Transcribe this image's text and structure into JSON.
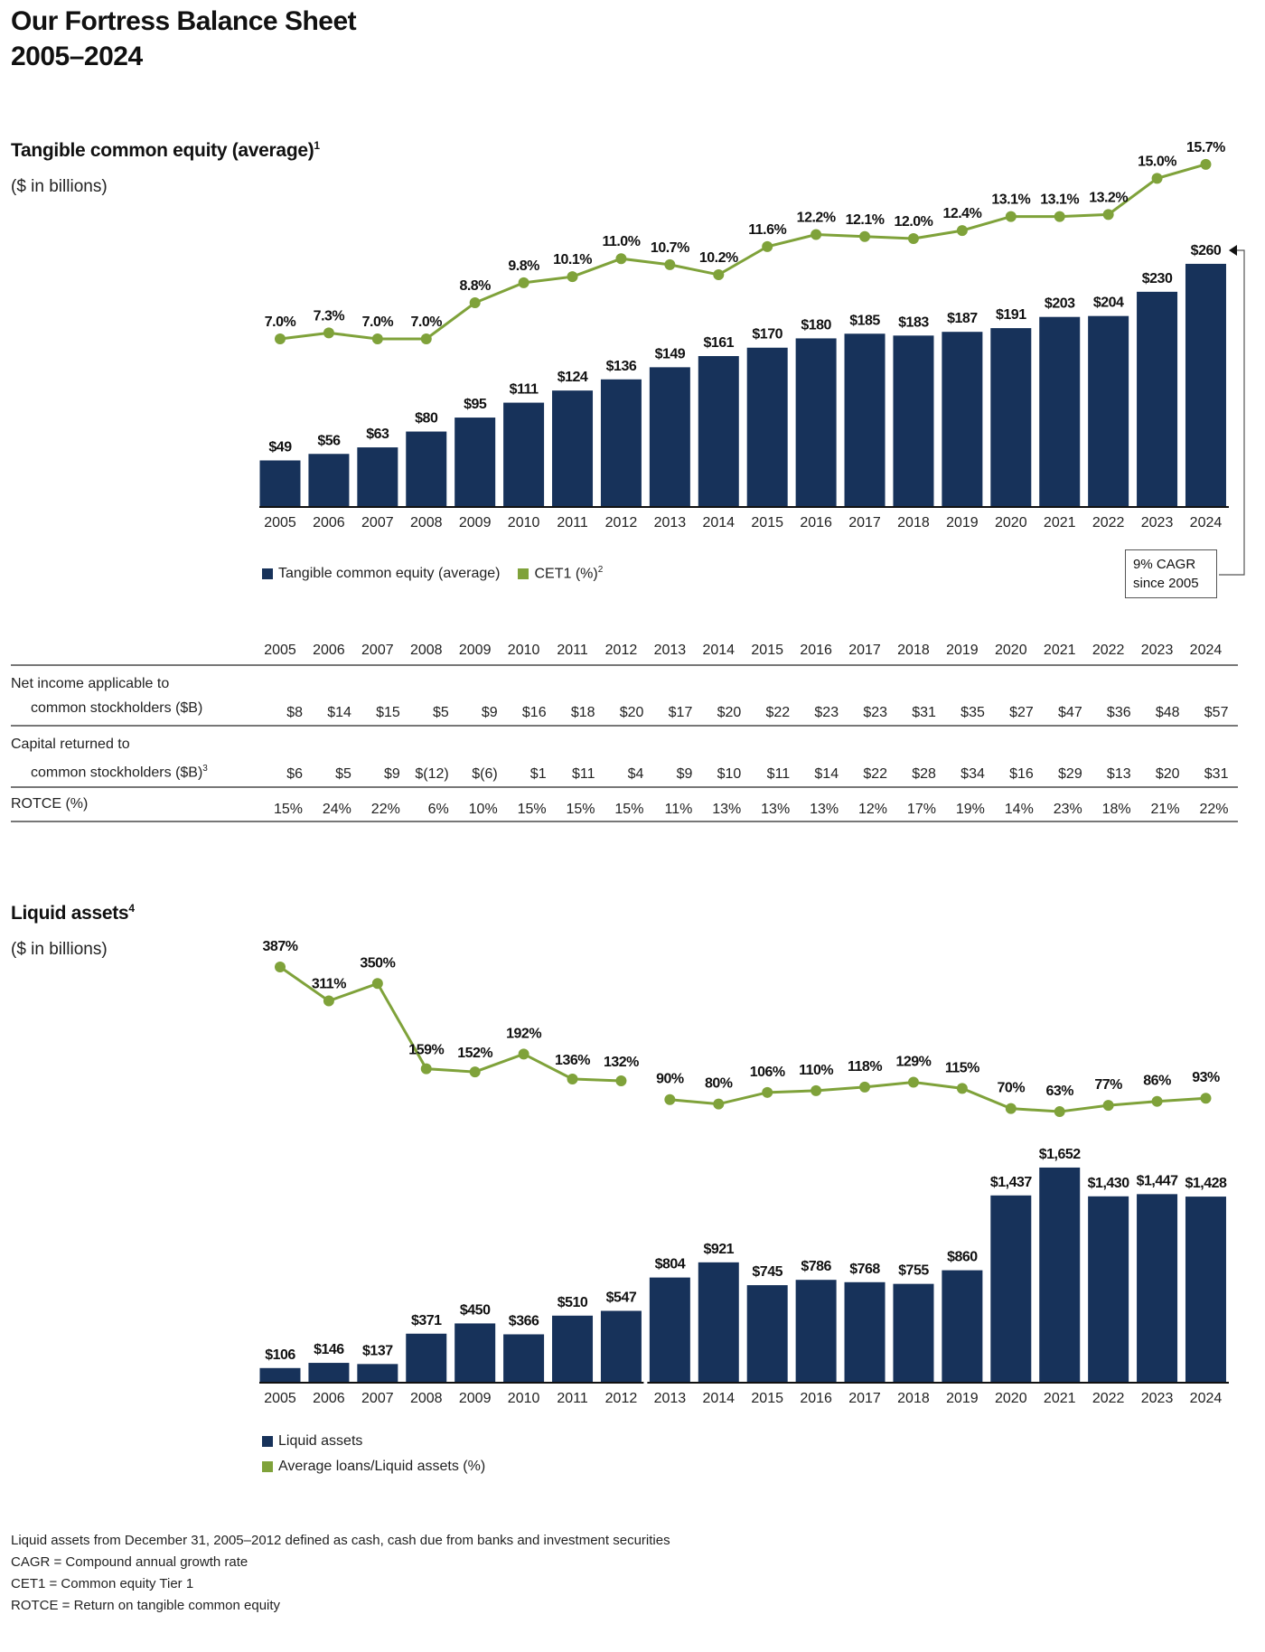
{
  "title_line1": "Our Fortress Balance Sheet",
  "title_line2": "2005–2024",
  "colors": {
    "bar": "#17325a",
    "line": "#7fa23a"
  },
  "years": [
    "2005",
    "2006",
    "2007",
    "2008",
    "2009",
    "2010",
    "2011",
    "2012",
    "2013",
    "2014",
    "2015",
    "2016",
    "2017",
    "2018",
    "2019",
    "2020",
    "2021",
    "2022",
    "2023",
    "2024"
  ],
  "chart_data": [
    {
      "type": "bar+line",
      "title": "Tangible common equity (average)",
      "title_footnote": "1",
      "subtitle": "($ in billions)",
      "categories": [
        "2005",
        "2006",
        "2007",
        "2008",
        "2009",
        "2010",
        "2011",
        "2012",
        "2013",
        "2014",
        "2015",
        "2016",
        "2017",
        "2018",
        "2019",
        "2020",
        "2021",
        "2022",
        "2023",
        "2024"
      ],
      "series": [
        {
          "name": "Tangible common equity (average)",
          "kind": "bar",
          "color": "#17325a",
          "values": [
            49,
            56,
            63,
            80,
            95,
            111,
            124,
            136,
            149,
            161,
            170,
            180,
            185,
            183,
            187,
            191,
            203,
            204,
            230,
            260
          ],
          "labels": [
            "$49",
            "$56",
            "$63",
            "$80",
            "$95",
            "$111",
            "$124",
            "$136",
            "$149",
            "$161",
            "$170",
            "$180",
            "$185",
            "$183",
            "$187",
            "$191",
            "$203",
            "$204",
            "$230",
            "$260"
          ]
        },
        {
          "name": "CET1 (%)",
          "name_footnote": "2",
          "kind": "line",
          "color": "#7fa23a",
          "values": [
            7.0,
            7.3,
            7.0,
            7.0,
            8.8,
            9.8,
            10.1,
            11.0,
            10.7,
            10.2,
            11.6,
            12.2,
            12.1,
            12.0,
            12.4,
            13.1,
            13.1,
            13.2,
            15.0,
            15.7
          ],
          "labels": [
            "7.0%",
            "7.3%",
            "7.0%",
            "7.0%",
            "8.8%",
            "9.8%",
            "10.1%",
            "11.0%",
            "10.7%",
            "10.2%",
            "11.6%",
            "12.2%",
            "12.1%",
            "12.0%",
            "12.4%",
            "13.1%",
            "13.1%",
            "13.2%",
            "15.0%",
            "15.7%"
          ]
        }
      ],
      "annotation": {
        "line1": "9% CAGR",
        "line2": "since 2005"
      },
      "legend_position": "bottom-left",
      "grid": false
    },
    {
      "type": "bar+line",
      "title": "Liquid assets",
      "title_footnote": "4",
      "subtitle": "($ in billions)",
      "categories": [
        "2005",
        "2006",
        "2007",
        "2008",
        "2009",
        "2010",
        "2011",
        "2012",
        "2013",
        "2014",
        "2015",
        "2016",
        "2017",
        "2018",
        "2019",
        "2020",
        "2021",
        "2022",
        "2023",
        "2024"
      ],
      "series": [
        {
          "name": "Liquid assets",
          "kind": "bar",
          "color": "#17325a",
          "values": [
            106,
            146,
            137,
            371,
            450,
            366,
            510,
            547,
            804,
            921,
            745,
            786,
            768,
            755,
            860,
            1437,
            1652,
            1430,
            1447,
            1428
          ],
          "labels": [
            "$106",
            "$146",
            "$137",
            "$371",
            "$450",
            "$366",
            "$510",
            "$547",
            "$804",
            "$921",
            "$745",
            "$786",
            "$768",
            "$755",
            "$860",
            "$1,437",
            "$1,652",
            "$1,430",
            "$1,447",
            "$1,428"
          ]
        },
        {
          "name": "Average loans/Liquid assets (%)",
          "kind": "line",
          "color": "#7fa23a",
          "values": [
            387,
            311,
            350,
            159,
            152,
            192,
            136,
            132,
            90,
            80,
            106,
            110,
            118,
            129,
            115,
            70,
            63,
            77,
            86,
            93
          ],
          "labels": [
            "387%",
            "311%",
            "350%",
            "159%",
            "152%",
            "192%",
            "136%",
            "132%",
            "90%",
            "80%",
            "106%",
            "110%",
            "118%",
            "129%",
            "115%",
            "70%",
            "63%",
            "77%",
            "86%",
            "93%"
          ]
        }
      ],
      "series_break_after": "2012",
      "legend_position": "bottom-left",
      "grid": false
    }
  ],
  "table": {
    "rows": [
      {
        "label1": "Net income applicable to",
        "label2": "common stockholders ($B)",
        "footnote": "",
        "values": [
          "$8",
          "$14",
          "$15",
          "$5",
          "$9",
          "$16",
          "$18",
          "$20",
          "$17",
          "$20",
          "$22",
          "$23",
          "$23",
          "$31",
          "$35",
          "$27",
          "$47",
          "$36",
          "$48",
          "$57"
        ]
      },
      {
        "label1": "Capital returned to",
        "label2": "common stockholders ($B)",
        "footnote": "3",
        "values": [
          "$6",
          "$5",
          "$9",
          "$(12)",
          "$(6)",
          "$1",
          "$11",
          "$4",
          "$9",
          "$10",
          "$11",
          "$14",
          "$22",
          "$28",
          "$34",
          "$16",
          "$29",
          "$13",
          "$20",
          "$31"
        ]
      },
      {
        "label1": "ROTCE (%)",
        "label2": "",
        "footnote": "",
        "values": [
          "15%",
          "24%",
          "22%",
          "6%",
          "10%",
          "15%",
          "15%",
          "15%",
          "11%",
          "13%",
          "13%",
          "13%",
          "12%",
          "17%",
          "19%",
          "14%",
          "23%",
          "18%",
          "21%",
          "22%"
        ]
      }
    ]
  },
  "footnotes": [
    "Liquid assets from December 31, 2005–2012 defined as cash, cash due from banks and investment securities",
    "CAGR = Compound annual growth rate",
    "CET1 = Common equity Tier 1",
    "ROTCE = Return on tangible common equity"
  ]
}
